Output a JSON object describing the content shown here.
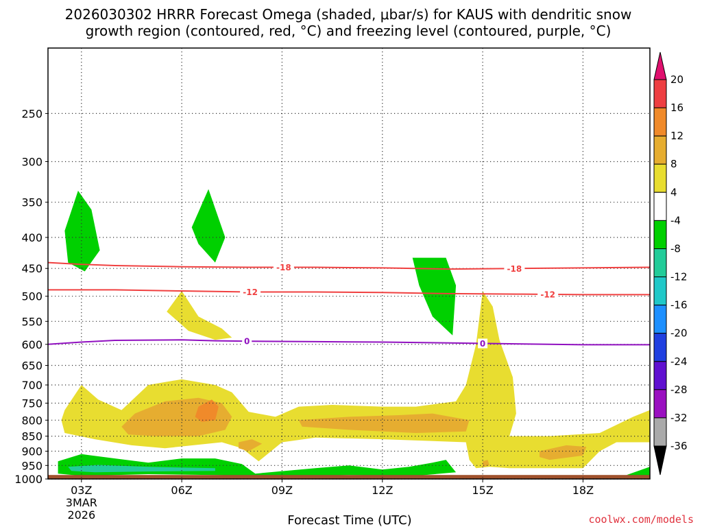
{
  "chart_data": {
    "type": "heatmap",
    "title_line1": "2026030302 HRRR Forecast Omega (shaded, μbar/s) for KAUS with dendritic snow",
    "title_line2": "growth region (contoured, red, °C) and freezing level (contoured, purple, °C)",
    "xlabel": "Forecast Time (UTC)",
    "ylabel": "",
    "credit": "coolwx.com/models",
    "x_range_hours": [
      2,
      20
    ],
    "y_axis": {
      "scale": "log-pressure",
      "range_mb": [
        195,
        1000
      ],
      "inverted": true
    },
    "x_ticks": [
      {
        "hour": 3,
        "label": "03Z",
        "sub": [
          "3MAR",
          "2026"
        ]
      },
      {
        "hour": 6,
        "label": "06Z"
      },
      {
        "hour": 9,
        "label": "09Z"
      },
      {
        "hour": 12,
        "label": "12Z"
      },
      {
        "hour": 15,
        "label": "15Z"
      },
      {
        "hour": 18,
        "label": "18Z"
      }
    ],
    "y_ticks": [
      250,
      300,
      350,
      400,
      450,
      500,
      550,
      600,
      650,
      700,
      750,
      800,
      850,
      900,
      950,
      1000
    ],
    "colorbar": {
      "units": "μbar/s",
      "boundaries": [
        "20",
        "16",
        "12",
        "8",
        "4",
        "-4",
        "-8",
        "-12",
        "-16",
        "-20",
        "-24",
        "-28",
        "-32",
        "-36"
      ],
      "bands": [
        {
          "range": "16 to 20",
          "color": "#ee3f42"
        },
        {
          "range": "12 to 16",
          "color": "#f08a2a"
        },
        {
          "range": "8 to 12",
          "color": "#e6ad30"
        },
        {
          "range": "4 to 8",
          "color": "#e8dd30"
        },
        {
          "range": "-4 to 4",
          "color": "#ffffff"
        },
        {
          "range": "-8 to -4",
          "color": "#00d000"
        },
        {
          "range": "-12 to -8",
          "color": "#22cc99"
        },
        {
          "range": "-16 to -12",
          "color": "#20c8c8"
        },
        {
          "range": "-20 to -16",
          "color": "#1e90ff"
        },
        {
          "range": "-24 to -20",
          "color": "#2040e0"
        },
        {
          "range": "-28 to -24",
          "color": "#6010d0"
        },
        {
          "range": "-32 to -28",
          "color": "#9a10c0"
        },
        {
          "range": "-36 to -32",
          "color": "#aaaaaa"
        }
      ],
      "top_arrow_color": "#e0106e",
      "bottom_arrow_color": "#000000"
    },
    "shaded_regions": [
      {
        "level": "-8 to -4",
        "color": "#00d000",
        "points": [
          [
            2.5,
            390
          ],
          [
            2.9,
            335
          ],
          [
            3.3,
            360
          ],
          [
            3.55,
            420
          ],
          [
            3.1,
            455
          ],
          [
            2.6,
            440
          ]
        ]
      },
      {
        "level": "-8 to -4",
        "color": "#00d000",
        "points": [
          [
            6.3,
            385
          ],
          [
            6.8,
            333
          ],
          [
            7.3,
            400
          ],
          [
            7.0,
            440
          ],
          [
            6.5,
            410
          ]
        ]
      },
      {
        "level": "-8 to -4",
        "color": "#00d000",
        "points": [
          [
            12.9,
            432
          ],
          [
            13.9,
            432
          ],
          [
            14.2,
            480
          ],
          [
            14.1,
            580
          ],
          [
            13.5,
            540
          ],
          [
            13.1,
            480
          ]
        ]
      },
      {
        "level": "-8 to -4",
        "color": "#00d000",
        "points": [
          [
            2.3,
            935
          ],
          [
            3.0,
            910
          ],
          [
            4.0,
            925
          ],
          [
            5.0,
            940
          ],
          [
            6.0,
            925
          ],
          [
            7.0,
            925
          ],
          [
            7.8,
            945
          ],
          [
            8.2,
            980
          ],
          [
            10.0,
            960
          ],
          [
            11.0,
            950
          ],
          [
            12.0,
            965
          ],
          [
            12.8,
            955
          ],
          [
            13.5,
            940
          ],
          [
            13.9,
            930
          ],
          [
            14.2,
            975
          ],
          [
            13.0,
            988
          ],
          [
            11.0,
            985
          ],
          [
            9.0,
            990
          ],
          [
            7.0,
            985
          ],
          [
            5.0,
            982
          ],
          [
            3.0,
            988
          ],
          [
            2.3,
            980
          ]
        ]
      },
      {
        "level": "-8 to -4",
        "color": "#00d000",
        "points": [
          [
            19.3,
            985
          ],
          [
            20.0,
            955
          ],
          [
            20.0,
            990
          ]
        ]
      },
      {
        "level": "-12 to -8",
        "color": "#22cc99",
        "points": [
          [
            2.6,
            955
          ],
          [
            3.5,
            948
          ],
          [
            5.0,
            955
          ],
          [
            7.0,
            960
          ],
          [
            7.0,
            970
          ],
          [
            5.0,
            972
          ],
          [
            3.4,
            975
          ],
          [
            2.7,
            970
          ]
        ]
      },
      {
        "level": "4 to 8",
        "color": "#e8dd30",
        "points": [
          [
            5.55,
            530
          ],
          [
            6.0,
            490
          ],
          [
            6.5,
            540
          ],
          [
            7.2,
            565
          ],
          [
            7.5,
            585
          ],
          [
            7.0,
            590
          ],
          [
            6.2,
            570
          ]
        ]
      },
      {
        "level": "4 to 8",
        "color": "#e8dd30",
        "points": [
          [
            2.5,
            770
          ],
          [
            3.0,
            700
          ],
          [
            3.5,
            740
          ],
          [
            4.2,
            770
          ],
          [
            5.0,
            700
          ],
          [
            6.0,
            685
          ],
          [
            7.0,
            700
          ],
          [
            7.5,
            720
          ],
          [
            8.0,
            775
          ],
          [
            8.8,
            790
          ],
          [
            9.5,
            760
          ],
          [
            10.5,
            755
          ],
          [
            12.0,
            760
          ],
          [
            13.0,
            760
          ],
          [
            14.2,
            745
          ],
          [
            14.5,
            700
          ],
          [
            14.8,
            600
          ],
          [
            15.0,
            490
          ],
          [
            15.3,
            520
          ],
          [
            15.5,
            590
          ],
          [
            15.9,
            680
          ],
          [
            16.0,
            780
          ],
          [
            15.8,
            850
          ],
          [
            17.0,
            850
          ],
          [
            18.5,
            840
          ],
          [
            19.5,
            790
          ],
          [
            20.0,
            770
          ],
          [
            20.0,
            870
          ],
          [
            19.0,
            870
          ],
          [
            18.5,
            900
          ],
          [
            18.0,
            960
          ],
          [
            17.0,
            960
          ],
          [
            15.8,
            960
          ],
          [
            15.2,
            955
          ],
          [
            14.8,
            960
          ],
          [
            14.6,
            930
          ],
          [
            14.5,
            870
          ],
          [
            12.0,
            860
          ],
          [
            10.0,
            855
          ],
          [
            9.0,
            870
          ],
          [
            8.3,
            935
          ],
          [
            7.8,
            890
          ],
          [
            7.2,
            870
          ],
          [
            5.5,
            890
          ],
          [
            4.5,
            880
          ],
          [
            3.4,
            860
          ],
          [
            2.5,
            840
          ],
          [
            2.4,
            800
          ]
        ]
      },
      {
        "level": "8 to 12",
        "color": "#e6ad30",
        "points": [
          [
            4.2,
            820
          ],
          [
            4.6,
            780
          ],
          [
            5.5,
            745
          ],
          [
            6.5,
            735
          ],
          [
            7.2,
            750
          ],
          [
            7.5,
            790
          ],
          [
            7.3,
            830
          ],
          [
            6.5,
            850
          ],
          [
            5.2,
            850
          ],
          [
            4.4,
            845
          ]
        ]
      },
      {
        "level": "8 to 12",
        "color": "#e6ad30",
        "points": [
          [
            9.5,
            800
          ],
          [
            11.0,
            790
          ],
          [
            12.5,
            785
          ],
          [
            13.5,
            780
          ],
          [
            14.6,
            800
          ],
          [
            14.5,
            835
          ],
          [
            13.0,
            840
          ],
          [
            11.0,
            830
          ],
          [
            9.6,
            820
          ]
        ]
      },
      {
        "level": "8 to 12",
        "color": "#e6ad30",
        "points": [
          [
            7.7,
            870
          ],
          [
            8.1,
            860
          ],
          [
            8.4,
            875
          ],
          [
            8.0,
            900
          ],
          [
            7.7,
            890
          ]
        ]
      },
      {
        "level": "8 to 12",
        "color": "#e6ad30",
        "points": [
          [
            16.7,
            900
          ],
          [
            17.5,
            880
          ],
          [
            18.1,
            885
          ],
          [
            18.0,
            915
          ],
          [
            17.0,
            930
          ],
          [
            16.7,
            920
          ]
        ]
      },
      {
        "level": "8 to 12",
        "color": "#e6ad30",
        "points": [
          [
            15.0,
            935
          ],
          [
            15.15,
            930
          ],
          [
            15.2,
            950
          ],
          [
            15.0,
            955
          ]
        ]
      },
      {
        "level": "12 to 16",
        "color": "#f08a2a",
        "points": [
          [
            6.5,
            760
          ],
          [
            6.9,
            740
          ],
          [
            7.1,
            760
          ],
          [
            7.0,
            800
          ],
          [
            6.6,
            805
          ],
          [
            6.4,
            790
          ]
        ]
      }
    ],
    "contours": [
      {
        "name": "dendritic growth -18",
        "value": -18,
        "label": "-18",
        "color": "#f04040",
        "points": [
          [
            2,
            440
          ],
          [
            3,
            443
          ],
          [
            4,
            445
          ],
          [
            6,
            447
          ],
          [
            8,
            448
          ],
          [
            10,
            448
          ],
          [
            12,
            449
          ],
          [
            14,
            451
          ],
          [
            16,
            450
          ],
          [
            18,
            449
          ],
          [
            20,
            448
          ]
        ],
        "label_hours": [
          9.05,
          15.95
        ]
      },
      {
        "name": "dendritic growth -12",
        "value": -12,
        "label": "-12",
        "color": "#f04040",
        "points": [
          [
            2,
            488
          ],
          [
            4,
            488
          ],
          [
            6,
            490
          ],
          [
            8,
            492
          ],
          [
            10,
            492
          ],
          [
            12,
            493
          ],
          [
            14,
            495
          ],
          [
            16,
            496
          ],
          [
            18,
            497
          ],
          [
            20,
            497
          ]
        ],
        "label_hours": [
          8.05,
          16.95
        ]
      },
      {
        "name": "freezing level 0",
        "value": 0,
        "label": "0",
        "color": "#9010c0",
        "points": [
          [
            2,
            600
          ],
          [
            3,
            595
          ],
          [
            4,
            591
          ],
          [
            6,
            590
          ],
          [
            7,
            592
          ],
          [
            8,
            593
          ],
          [
            10,
            594
          ],
          [
            12,
            595
          ],
          [
            14,
            597
          ],
          [
            16,
            599
          ],
          [
            18,
            601
          ],
          [
            20,
            601
          ]
        ],
        "label_hours": [
          7.95,
          15.0
        ]
      }
    ],
    "ground_band_mb": [
      985,
      1000
    ],
    "ground_color": "#a0522d"
  }
}
